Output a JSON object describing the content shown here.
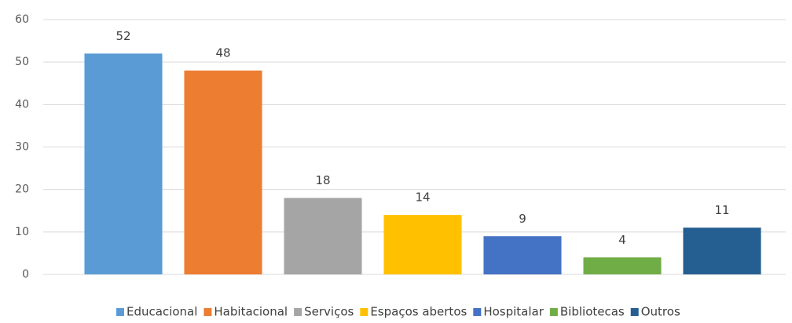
{
  "chart_data": {
    "type": "bar",
    "categories": [
      "Educacional",
      "Habitacional",
      "Serviços",
      "Espaços abertos",
      "Hospitalar",
      "Bibliotecas",
      "Outros"
    ],
    "values": [
      52,
      48,
      18,
      14,
      9,
      4,
      11
    ],
    "colors": [
      "#5b9bd5",
      "#ed7d31",
      "#a5a5a5",
      "#ffc000",
      "#4472c4",
      "#70ad47",
      "#255e91"
    ],
    "ylim": [
      0,
      60
    ],
    "yticks": [
      0,
      10,
      20,
      30,
      40,
      50,
      60
    ],
    "grid": true,
    "legend": "bottom"
  }
}
